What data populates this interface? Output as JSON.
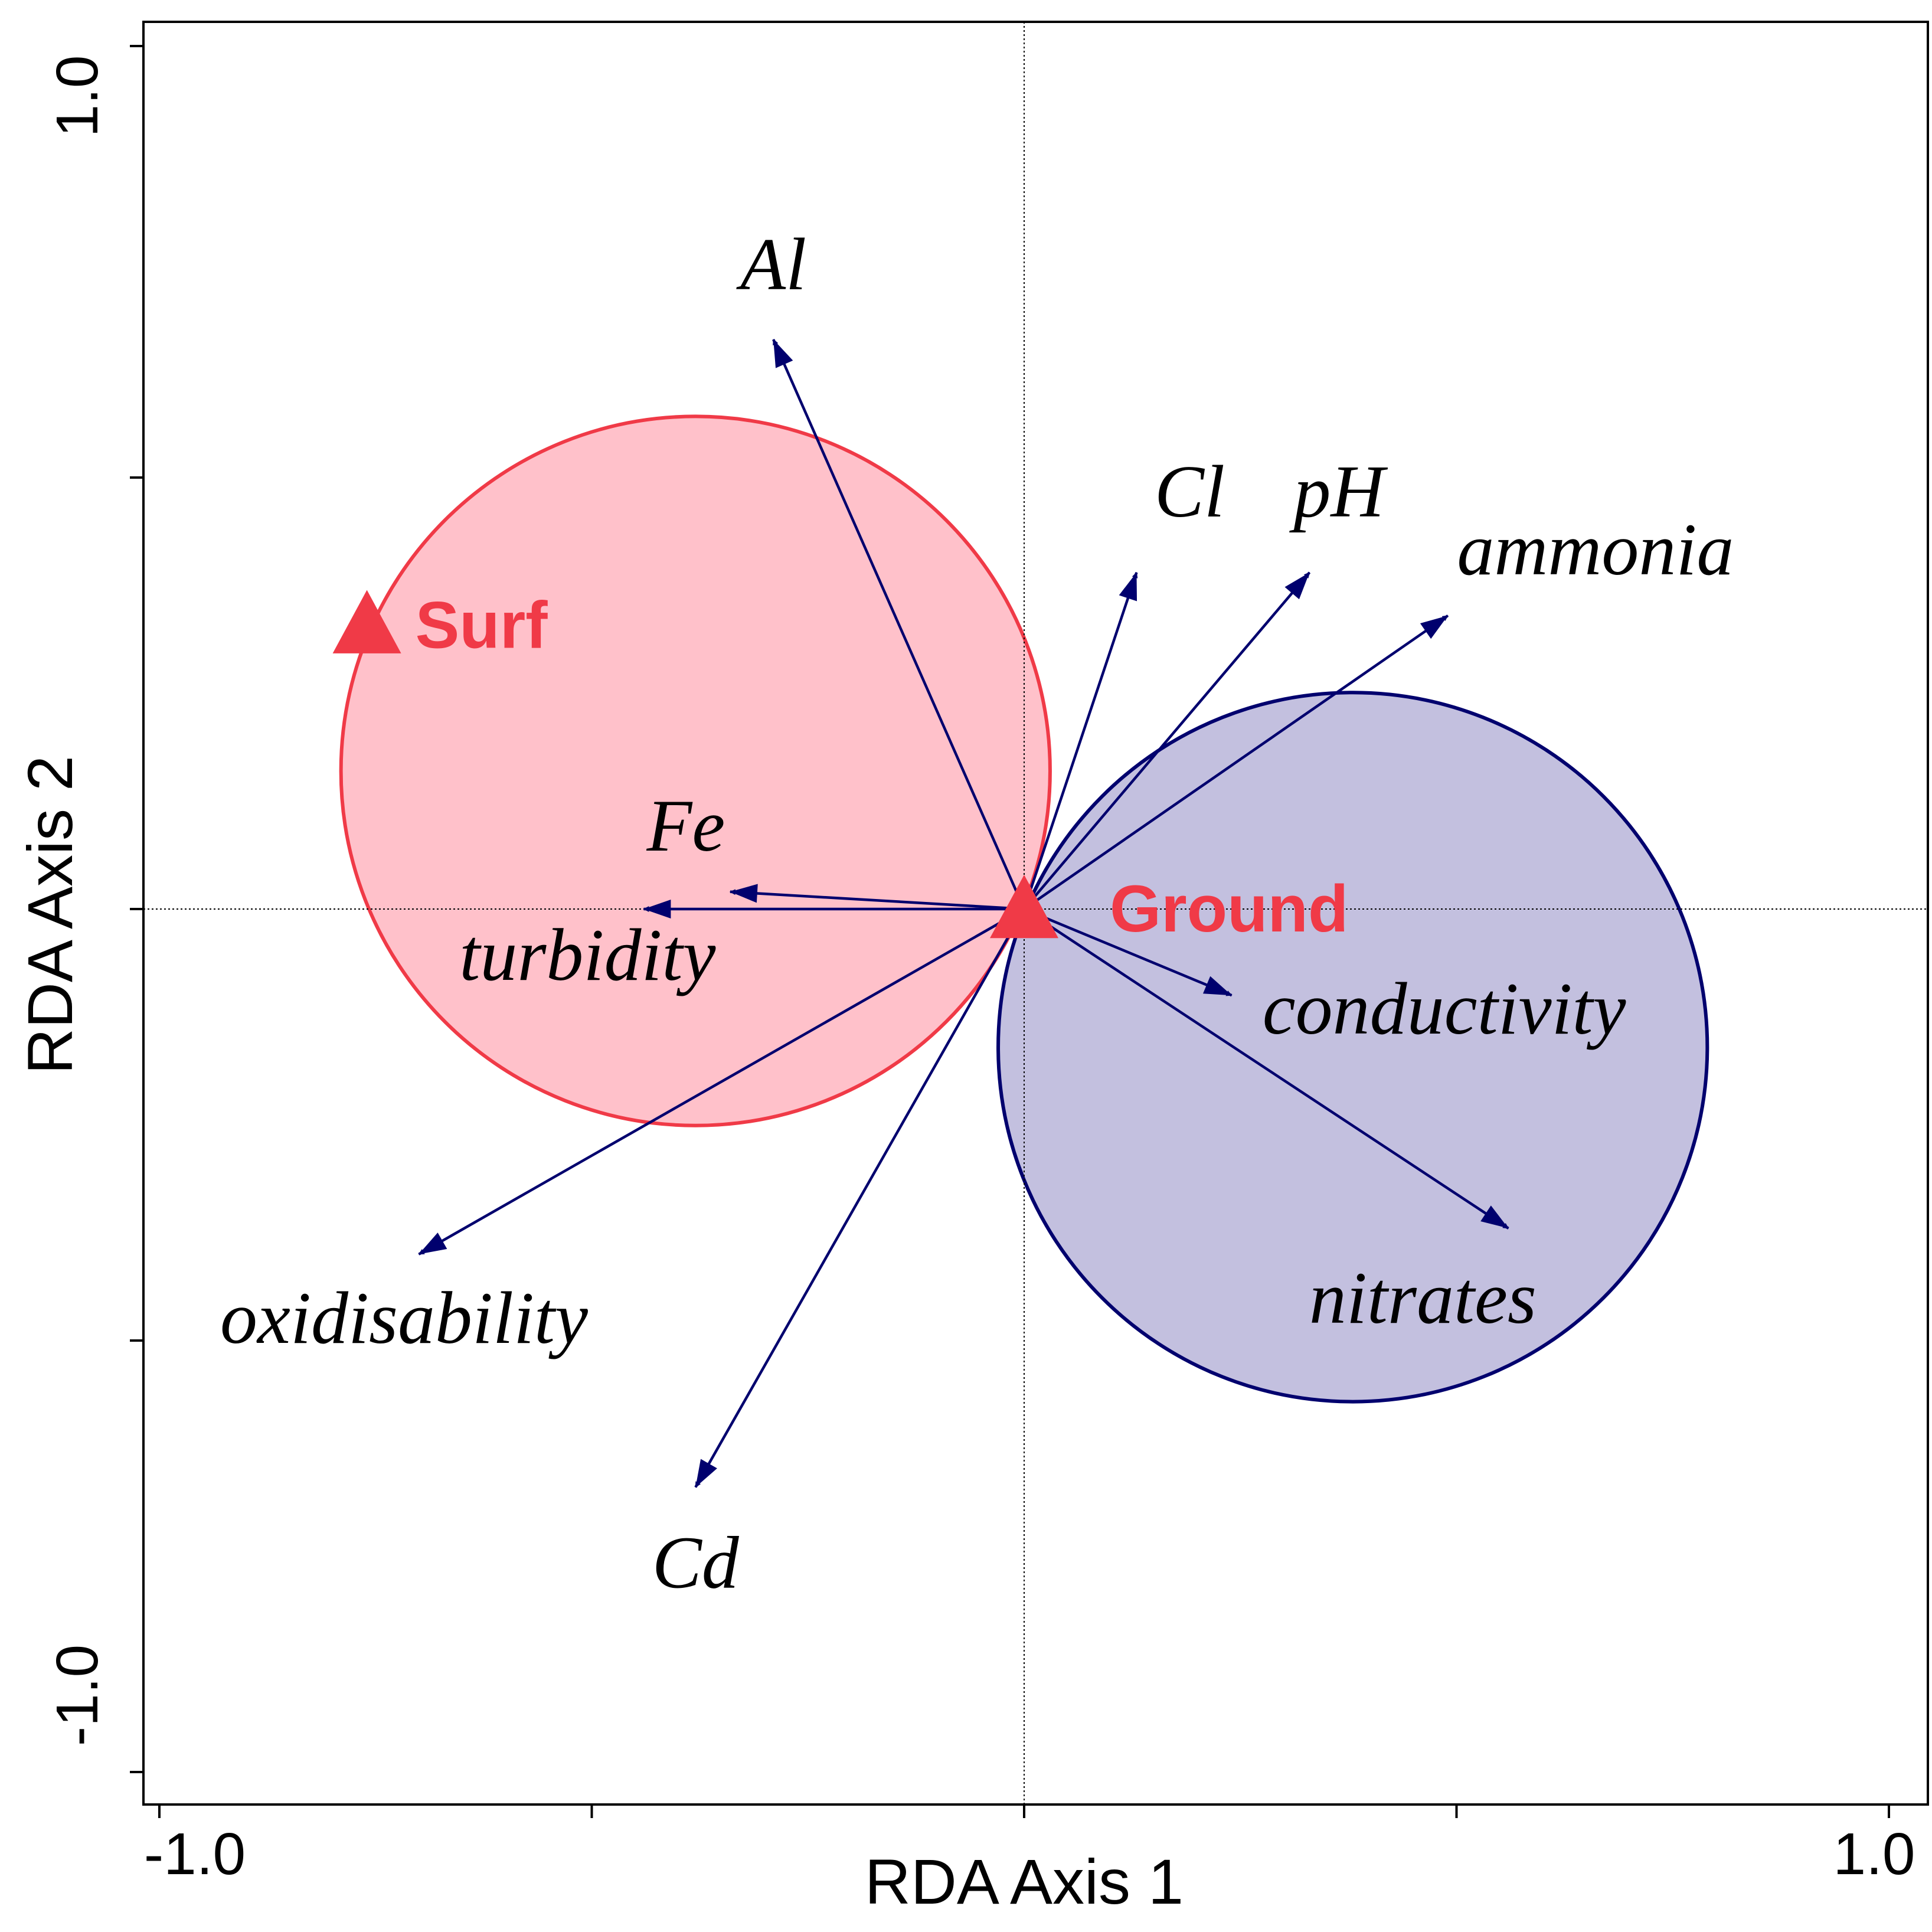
{
  "chart_data": {
    "type": "scatter",
    "subtype": "rda-biplot",
    "title": "",
    "xlabel": "RDA Axis 1",
    "ylabel": "RDA Axis 2",
    "xlim": [
      -1.0,
      1.0
    ],
    "ylim": [
      -1.0,
      1.0
    ],
    "x_tick_labels": [
      "-1.0",
      "1.0"
    ],
    "y_tick_labels": [
      "1.0",
      "-1.0"
    ],
    "x_ticks": [
      -1.0,
      -0.5,
      0.0,
      0.5,
      1.0
    ],
    "y_ticks": [
      1.0,
      0.5,
      0.0,
      -0.5,
      -1.0
    ],
    "grid": false,
    "reference_lines": [
      0,
      0
    ],
    "colors": {
      "arrow": "#00006e",
      "surf": "#f03a47",
      "surf_fill": "#ffbcc5",
      "ground_edge": "#00006e",
      "ground_fill": "#c3c0df"
    },
    "groups": [
      {
        "name": "Surf",
        "x": -0.76,
        "y": 0.33,
        "circle": {
          "cx": -0.38,
          "cy": 0.16,
          "r": 0.41
        }
      },
      {
        "name": "Ground",
        "x": 0.0,
        "y": 0.0,
        "circle": {
          "cx": 0.38,
          "cy": -0.16,
          "r": 0.41
        }
      }
    ],
    "variables": [
      {
        "name": "Al",
        "x": -0.29,
        "y": 0.66
      },
      {
        "name": "Cl",
        "x": 0.13,
        "y": 0.39
      },
      {
        "name": "pH",
        "x": 0.33,
        "y": 0.39
      },
      {
        "name": "ammonia",
        "x": 0.49,
        "y": 0.34
      },
      {
        "name": "Fe",
        "x": -0.34,
        "y": 0.02
      },
      {
        "name": "turbidity",
        "x": -0.44,
        "y": 0.0
      },
      {
        "name": "conductivity",
        "x": 0.24,
        "y": -0.1
      },
      {
        "name": "nitrates",
        "x": 0.56,
        "y": -0.37
      },
      {
        "name": "oxidisability",
        "x": -0.7,
        "y": -0.4
      },
      {
        "name": "Cd",
        "x": -0.38,
        "y": -0.67
      }
    ]
  }
}
